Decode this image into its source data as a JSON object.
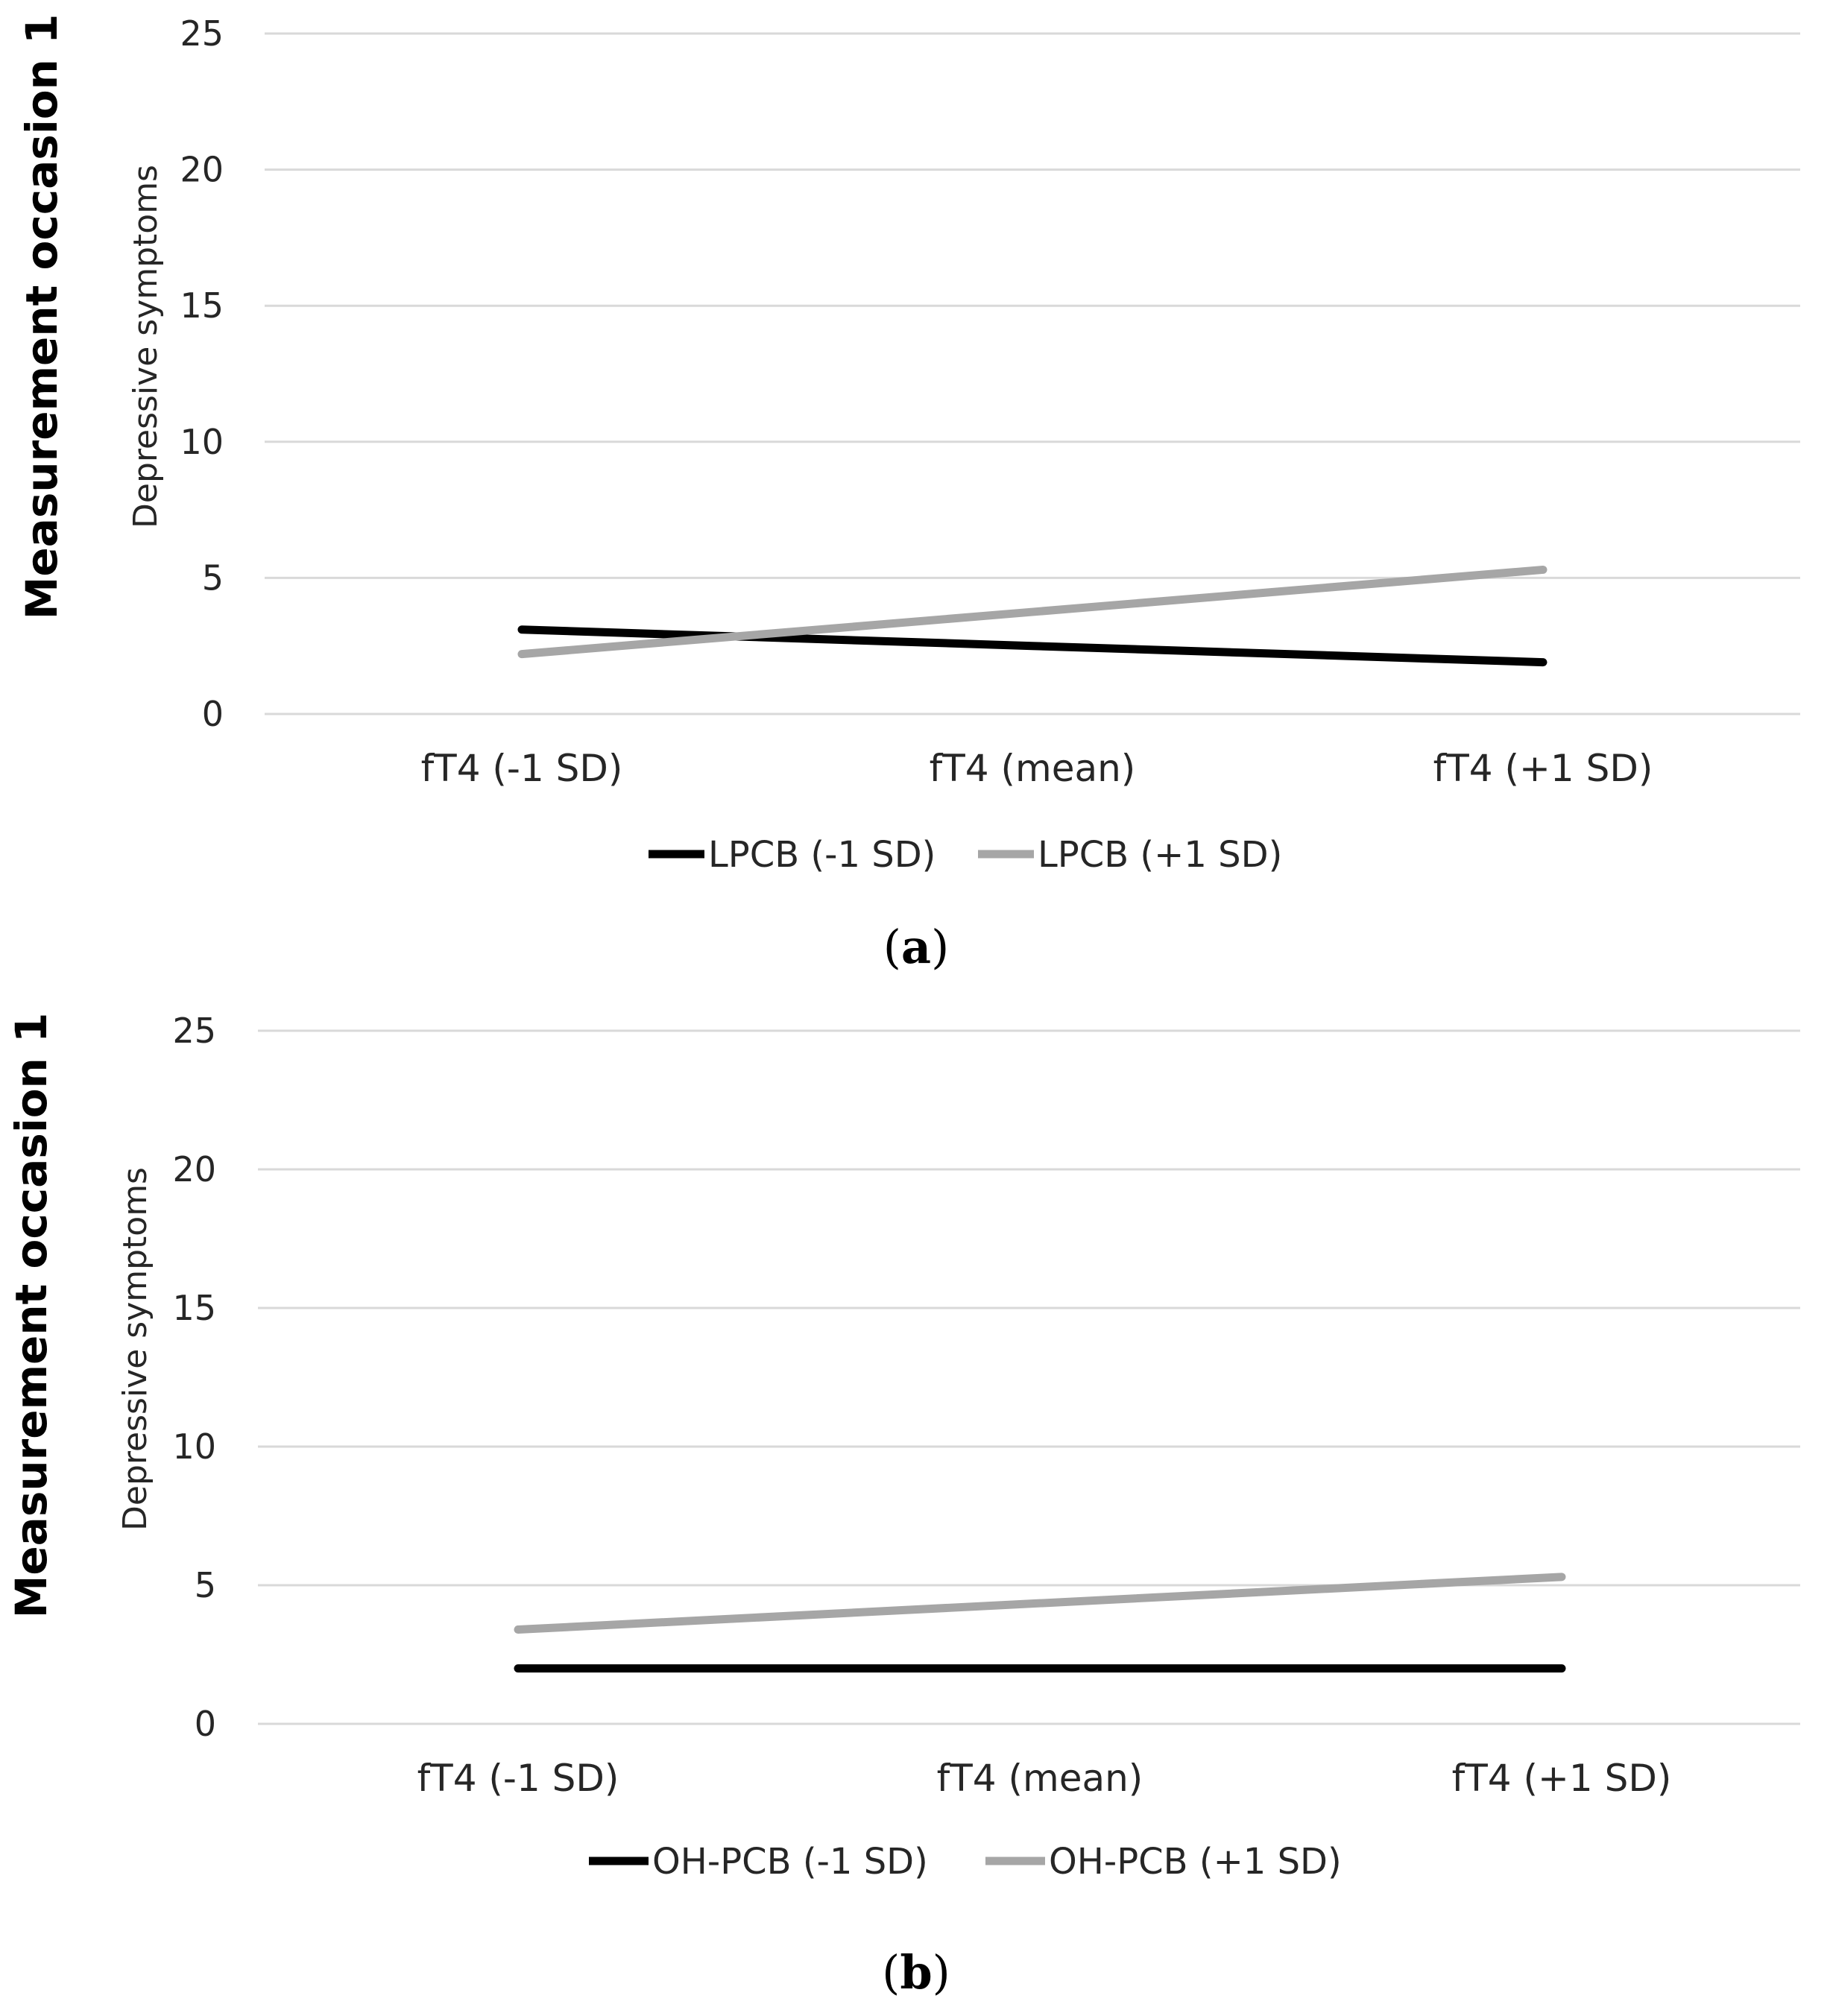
{
  "chart_data": [
    {
      "type": "line",
      "panel_label": "a",
      "side_label": "Measurement occasion 1",
      "ylabel": "Depressive symptoms",
      "xlabel": "",
      "ylim": [
        0,
        25
      ],
      "yticks": [
        0,
        5,
        10,
        15,
        20,
        25
      ],
      "grid": true,
      "legend": "bottom",
      "categories": [
        "fT4 (-1 SD)",
        "fT4 (mean)",
        "fT4 (+1 SD)"
      ],
      "series": [
        {
          "name": "LPCB (-1 SD)",
          "color": "#000000",
          "values": [
            3.1,
            2.5,
            1.9
          ]
        },
        {
          "name": "LPCB (+1 SD)",
          "color": "#a6a6a6",
          "values": [
            2.2,
            3.75,
            5.3
          ]
        }
      ]
    },
    {
      "type": "line",
      "panel_label": "b",
      "side_label": "Measurement occasion 1",
      "ylabel": "Depressive symptoms",
      "xlabel": "",
      "ylim": [
        0,
        25
      ],
      "yticks": [
        0,
        5,
        10,
        15,
        20,
        25
      ],
      "grid": true,
      "legend": "bottom",
      "categories": [
        "fT4 (-1 SD)",
        "fT4 (mean)",
        "fT4 (+1 SD)"
      ],
      "series": [
        {
          "name": "OH-PCB (-1 SD)",
          "color": "#000000",
          "values": [
            2.0,
            2.0,
            2.0
          ]
        },
        {
          "name": "OH-PCB (+1 SD)",
          "color": "#a6a6a6",
          "values": [
            3.4,
            4.35,
            5.3
          ]
        }
      ]
    }
  ]
}
